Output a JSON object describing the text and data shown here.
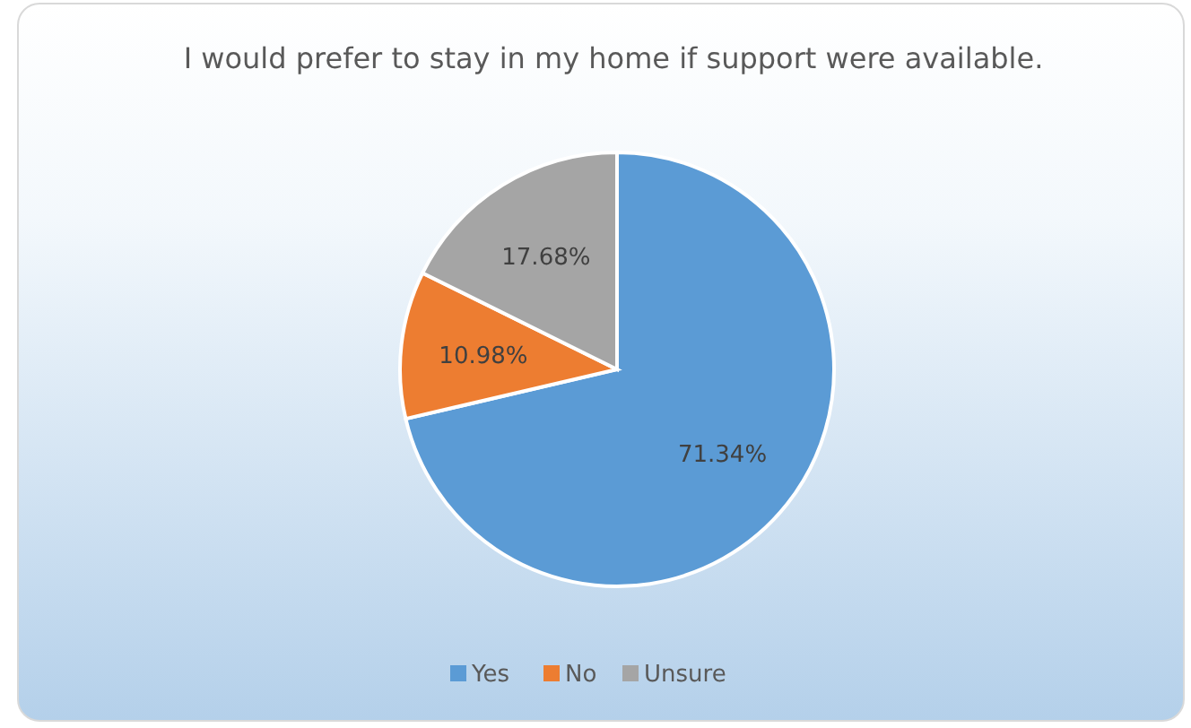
{
  "chart_data": {
    "type": "pie",
    "title": "I would prefer to stay in my home if support were available.",
    "categories": [
      "Yes",
      "No",
      "Unsure"
    ],
    "values": [
      71.34,
      10.98,
      17.68
    ],
    "colors": [
      "#5b9bd5",
      "#ed7d31",
      "#a5a5a5"
    ],
    "value_labels": [
      "71.34%",
      "10.98%",
      "17.68%"
    ],
    "legend": "bottom"
  }
}
